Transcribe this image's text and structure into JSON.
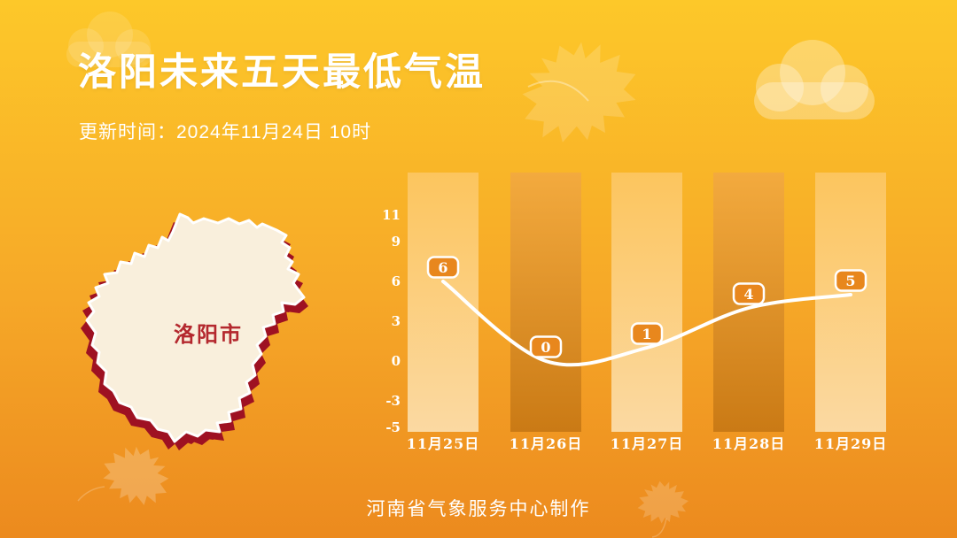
{
  "header": {
    "title": "洛阳未来五天最低气温",
    "update_time": "更新时间：2024年11月24日 10时"
  },
  "map": {
    "label": "洛阳市"
  },
  "chart_data": {
    "type": "line",
    "title": "洛阳未来五天最低气温",
    "categories": [
      "11月25日",
      "11月26日",
      "11月27日",
      "11月28日",
      "11月29日"
    ],
    "series": [
      {
        "name": "最低气温",
        "values": [
          6,
          0,
          1,
          4,
          5
        ]
      }
    ],
    "data_labels": [
      6,
      0,
      1,
      4,
      5
    ],
    "yticks": [
      11,
      9,
      6,
      3,
      0,
      -3,
      -5
    ],
    "ylim": [
      -5,
      12
    ],
    "grid": false,
    "legend": "none"
  },
  "footer": {
    "credit": "河南省气象服务中心制作"
  },
  "colors": {
    "bg_top": "#fdc829",
    "bg_mid": "#f6a828",
    "bg_bottom": "#ec8a1e",
    "bar_light_top": "#fcc55e",
    "bar_light_bottom": "#fbd9a2",
    "bar_dark_top": "#f3aa3e",
    "bar_dark_bottom": "#ca7a15",
    "line": "#ffffff",
    "bubble_fill": "#e8871d",
    "bubble_border": "#ffffff",
    "axis_text": "#ffffff",
    "map_fill": "#f9efdc",
    "map_stroke": "#ffffff",
    "map_shadow": "#9e1122",
    "map_label": "#b4282e",
    "title_text": "#ffffff"
  }
}
